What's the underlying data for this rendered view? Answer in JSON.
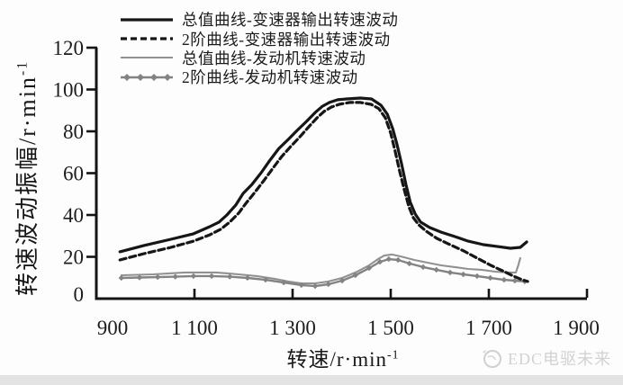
{
  "chart_data": {
    "type": "line",
    "xlabel": {
      "base": "转速/r·min",
      "exp": "-1"
    },
    "ylabel": {
      "base": "转速波动振幅/r·min",
      "exp": "-1"
    },
    "xlim": [
      900,
      1900
    ],
    "ylim": [
      0,
      120
    ],
    "x_tick_values": [
      900,
      1100,
      1300,
      1500,
      1700,
      1900
    ],
    "x_tick_labels": [
      "900",
      "1 100",
      "1 300",
      "1 500",
      "1 700",
      "1 900"
    ],
    "y_tick_values": [
      0,
      20,
      40,
      60,
      80,
      100,
      120
    ],
    "grid": false,
    "legend_position": "top-left",
    "series": [
      {
        "name": "总值曲线-变速器输出转速波动",
        "style": "solid",
        "color": "#161616",
        "width": 3.2,
        "markers": false,
        "points": [
          [
            948,
            22.4
          ],
          [
            997,
            25.4
          ],
          [
            1052,
            28.4
          ],
          [
            1098,
            31
          ],
          [
            1131,
            34.4
          ],
          [
            1150,
            36.6
          ],
          [
            1166,
            40
          ],
          [
            1184,
            44.7
          ],
          [
            1199,
            50.3
          ],
          [
            1217,
            54.6
          ],
          [
            1236,
            60.2
          ],
          [
            1254,
            66.2
          ],
          [
            1272,
            71.8
          ],
          [
            1291,
            76.1
          ],
          [
            1309,
            80.4
          ],
          [
            1328,
            84.7
          ],
          [
            1346,
            89
          ],
          [
            1361,
            92
          ],
          [
            1375,
            93.8
          ],
          [
            1392,
            95.1
          ],
          [
            1410,
            95.5
          ],
          [
            1438,
            95.9
          ],
          [
            1461,
            95.5
          ],
          [
            1480,
            92.5
          ],
          [
            1493,
            88.2
          ],
          [
            1504,
            81.3
          ],
          [
            1513,
            73.5
          ],
          [
            1522,
            64.5
          ],
          [
            1531,
            54.6
          ],
          [
            1540,
            46
          ],
          [
            1550,
            40.4
          ],
          [
            1561,
            36.6
          ],
          [
            1579,
            34
          ],
          [
            1603,
            31.8
          ],
          [
            1630,
            29.7
          ],
          [
            1658,
            27.5
          ],
          [
            1689,
            25.8
          ],
          [
            1718,
            24.9
          ],
          [
            1744,
            24.1
          ],
          [
            1764,
            24.5
          ],
          [
            1777,
            27.1
          ]
        ]
      },
      {
        "name": "2阶曲线-变速器输出转速波动",
        "style": "dashed",
        "color": "#161616",
        "width": 3.2,
        "markers": false,
        "points": [
          [
            948,
            18.5
          ],
          [
            997,
            21.5
          ],
          [
            1052,
            24.5
          ],
          [
            1098,
            27.5
          ],
          [
            1131,
            30.5
          ],
          [
            1153,
            33.1
          ],
          [
            1172,
            36.6
          ],
          [
            1190,
            40.9
          ],
          [
            1205,
            45.6
          ],
          [
            1223,
            50.8
          ],
          [
            1241,
            56.3
          ],
          [
            1260,
            62.4
          ],
          [
            1278,
            68
          ],
          [
            1296,
            72.7
          ],
          [
            1315,
            77.4
          ],
          [
            1333,
            82.2
          ],
          [
            1350,
            86.5
          ],
          [
            1364,
            89.5
          ],
          [
            1379,
            91.6
          ],
          [
            1395,
            92.9
          ],
          [
            1416,
            93.8
          ],
          [
            1438,
            93.8
          ],
          [
            1460,
            92.9
          ],
          [
            1476,
            90.8
          ],
          [
            1489,
            86.5
          ],
          [
            1500,
            79.1
          ],
          [
            1509,
            70.5
          ],
          [
            1518,
            61.1
          ],
          [
            1528,
            51.6
          ],
          [
            1537,
            43.9
          ],
          [
            1546,
            38.7
          ],
          [
            1557,
            35.3
          ],
          [
            1572,
            32.3
          ],
          [
            1594,
            28.8
          ],
          [
            1621,
            25.8
          ],
          [
            1649,
            22.8
          ],
          [
            1676,
            19.4
          ],
          [
            1704,
            15.9
          ],
          [
            1728,
            13.3
          ],
          [
            1750,
            10.8
          ],
          [
            1768,
            9
          ],
          [
            1779,
            8.2
          ]
        ]
      },
      {
        "name": "总值曲线-发动机转速波动",
        "style": "solid",
        "color": "#919191",
        "width": 2.1,
        "markers": false,
        "points": [
          [
            951,
            11.2
          ],
          [
            1016,
            11.6
          ],
          [
            1080,
            12.5
          ],
          [
            1144,
            12.5
          ],
          [
            1190,
            11.6
          ],
          [
            1227,
            10.8
          ],
          [
            1263,
            9.5
          ],
          [
            1291,
            8.2
          ],
          [
            1318,
            7.3
          ],
          [
            1346,
            7.3
          ],
          [
            1373,
            8.2
          ],
          [
            1401,
            9.9
          ],
          [
            1428,
            12.5
          ],
          [
            1456,
            15.9
          ],
          [
            1474,
            18.9
          ],
          [
            1487,
            20.6
          ],
          [
            1502,
            21.1
          ],
          [
            1520,
            20.2
          ],
          [
            1548,
            18.5
          ],
          [
            1575,
            17.2
          ],
          [
            1603,
            15.9
          ],
          [
            1630,
            15.1
          ],
          [
            1658,
            14.2
          ],
          [
            1685,
            13.8
          ],
          [
            1713,
            12.9
          ],
          [
            1740,
            12.5
          ],
          [
            1755,
            12.5
          ],
          [
            1760,
            15.9
          ],
          [
            1764,
            19.4
          ]
        ]
      },
      {
        "name": "2阶曲线-发动机转速波动",
        "style": "solid",
        "color": "#838383",
        "width": 2.4,
        "markers": true,
        "points": [
          [
            951,
            9.9
          ],
          [
            988,
            10.1
          ],
          [
            1025,
            10.3
          ],
          [
            1061,
            10.5
          ],
          [
            1098,
            10.8
          ],
          [
            1135,
            10.8
          ],
          [
            1172,
            10.5
          ],
          [
            1208,
            9.9
          ],
          [
            1245,
            9
          ],
          [
            1282,
            7.7
          ],
          [
            1318,
            6.5
          ],
          [
            1346,
            6
          ],
          [
            1373,
            6.9
          ],
          [
            1401,
            8.6
          ],
          [
            1428,
            11.2
          ],
          [
            1456,
            14.6
          ],
          [
            1478,
            17.6
          ],
          [
            1496,
            18.9
          ],
          [
            1515,
            18.5
          ],
          [
            1538,
            16.8
          ],
          [
            1566,
            15.1
          ],
          [
            1593,
            13.8
          ],
          [
            1621,
            12.5
          ],
          [
            1648,
            11.6
          ],
          [
            1676,
            10.8
          ],
          [
            1703,
            9.9
          ],
          [
            1731,
            9
          ],
          [
            1753,
            8.6
          ],
          [
            1773,
            8.2
          ]
        ]
      }
    ]
  },
  "watermark": {
    "text": "EDC电驱未来"
  }
}
